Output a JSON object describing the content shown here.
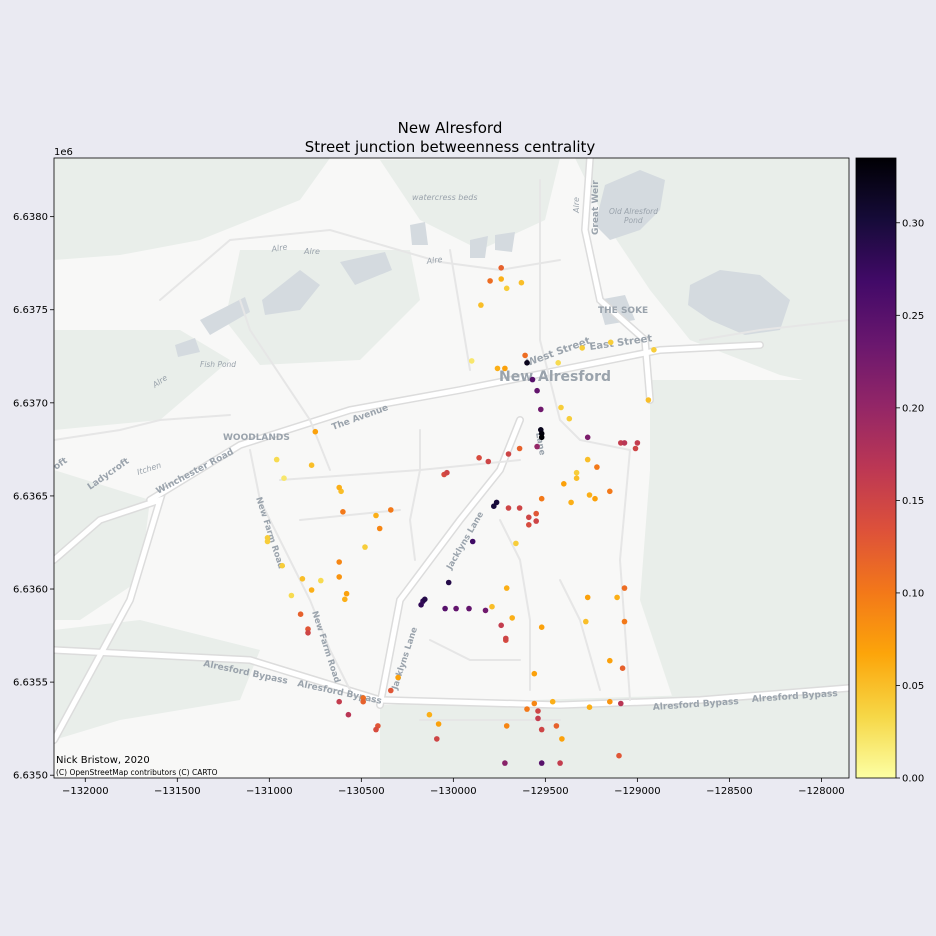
{
  "title_line1": "New Alresford",
  "title_line2": "Street junction betweenness centrality",
  "x_exponent": "1e6",
  "credit_author": "Nick Bristow, 2020",
  "credit_tiles": "(C) OpenStreetMap contributors (C) CARTO",
  "map_labels": {
    "watercress": "watercress beds",
    "great_weir": "Great Weir",
    "old_pond": "Old Alresford",
    "old_pond2": "Pond",
    "alre1": "Alre",
    "alre2": "Alre",
    "alre3": "Alre",
    "alre4": "Alre",
    "alre5": "Alre",
    "the_soke": "THE SOKE",
    "fish_pond": "Fish Pond",
    "west_street": "West Street",
    "east_street": "East Street",
    "new_alresford": "New Alresford",
    "woodlands": "WOODLANDS",
    "the_avenue": "The Avenue",
    "winchester_road": "Winchester Road",
    "itchen": "Itchen",
    "ladycroft": "Ladycroft",
    "croft": "oft",
    "new_farm_road": "New Farm Road",
    "jacklyns_lane": "Jacklyns Lane",
    "jacklyns_lane2": "Jacklyns Lane",
    "jacklyns_lane3": "Jacklyns Lane",
    "bypass1": "Alresford Bypass",
    "bypass2": "Alresford Bypass",
    "bypass3": "Alresford Bypass",
    "bypass4": "Alresford Bypass",
    "lane": "Lane"
  },
  "colors": {
    "background": "#eaeaf2",
    "map_bg": "#f8f8f7",
    "green": "#e9eeea",
    "water": "#d4dadf",
    "road": "#ffffff",
    "road_edge": "#dcdcdc",
    "colormap": [
      "#fcffa4",
      "#f6d746",
      "#fca50a",
      "#f37819",
      "#dd513a",
      "#bc3754",
      "#932667",
      "#6a176e",
      "#420a68",
      "#160b39",
      "#000004"
    ]
  },
  "chart_data": {
    "type": "scatter",
    "title": "New Alresford\nStreet junction betweenness centrality",
    "x_ticks": [
      -132000,
      -131500,
      -131000,
      -130500,
      -130000,
      -129500,
      -129000,
      -128500,
      -128000
    ],
    "x_tick_labels": [
      "−132000",
      "−131500",
      "−131000",
      "−130500",
      "−130000",
      "−129500",
      "−129000",
      "−128500",
      "−128000"
    ],
    "y_ticks": [
      6.635,
      6.6355,
      6.636,
      6.6365,
      6.637,
      6.6375,
      6.638
    ],
    "y_tick_labels": [
      "6.6350",
      "6.6355",
      "6.6360",
      "6.6365",
      "6.6370",
      "6.6375",
      "6.6380"
    ],
    "y_multiplier": "1e6",
    "xlim": [
      -132170,
      -127850
    ],
    "ylim": [
      6.634985,
      6.638315
    ],
    "colorbar": {
      "colormap": "inferno_r",
      "range": [
        0,
        0.335
      ],
      "ticks": [
        0.0,
        0.05,
        0.1,
        0.15,
        0.2,
        0.25,
        0.3
      ],
      "tick_labels": [
        "0.00",
        "0.05",
        "0.10",
        "0.15",
        "0.20",
        "0.25",
        "0.30"
      ]
    },
    "points": [
      [
        -129520,
        6.636815,
        0.335
      ],
      [
        -129520,
        6.636835,
        0.33
      ],
      [
        -129525,
        6.636855,
        0.32
      ],
      [
        -129600,
        6.637215,
        0.32
      ],
      [
        -129570,
        6.637125,
        0.25
      ],
      [
        -129545,
        6.637065,
        0.24
      ],
      [
        -129525,
        6.636965,
        0.23
      ],
      [
        -129545,
        6.636765,
        0.2
      ],
      [
        -129640,
        6.636755,
        0.12
      ],
      [
        -129700,
        6.636725,
        0.15
      ],
      [
        -129860,
        6.636705,
        0.14
      ],
      [
        -129810,
        6.636685,
        0.15
      ],
      [
        -130035,
        6.636625,
        0.15
      ],
      [
        -130050,
        6.636615,
        0.14
      ],
      [
        -129765,
        6.636465,
        0.3
      ],
      [
        -129780,
        6.636445,
        0.3
      ],
      [
        -129895,
        6.636255,
        0.27
      ],
      [
        -130025,
        6.636035,
        0.29
      ],
      [
        -130155,
        6.635945,
        0.29
      ],
      [
        -130165,
        6.635935,
        0.28
      ],
      [
        -130175,
        6.635915,
        0.28
      ],
      [
        -130045,
        6.635895,
        0.25
      ],
      [
        -129985,
        6.635895,
        0.24
      ],
      [
        -129915,
        6.635895,
        0.24
      ],
      [
        -129825,
        6.635885,
        0.23
      ],
      [
        -129740,
        6.635805,
        0.16
      ],
      [
        -129715,
        6.635735,
        0.15
      ],
      [
        -129715,
        6.635725,
        0.14
      ],
      [
        -129640,
        6.636435,
        0.15
      ],
      [
        -129590,
        6.636385,
        0.15
      ],
      [
        -129590,
        6.636345,
        0.14
      ],
      [
        -129270,
        6.636815,
        0.22
      ],
      [
        -129070,
        6.636785,
        0.17
      ],
      [
        -129090,
        6.636785,
        0.16
      ],
      [
        -129000,
        6.636785,
        0.16
      ],
      [
        -129010,
        6.636755,
        0.15
      ],
      [
        -129150,
        6.636525,
        0.1
      ],
      [
        -129220,
        6.636655,
        0.1
      ],
      [
        -129270,
        6.636695,
        0.05
      ],
      [
        -129740,
        6.637725,
        0.12
      ],
      [
        -129800,
        6.637655,
        0.11
      ],
      [
        -129850,
        6.637525,
        0.05
      ],
      [
        -129740,
        6.637665,
        0.06
      ],
      [
        -129710,
        6.637615,
        0.04
      ],
      [
        -129630,
        6.637645,
        0.05
      ],
      [
        -129610,
        6.637255,
        0.11
      ],
      [
        -129720,
        6.637185,
        0.07
      ],
      [
        -129760,
        6.637185,
        0.06
      ],
      [
        -129900,
        6.637225,
        0.02
      ],
      [
        -129430,
        6.637215,
        0.03
      ],
      [
        -129300,
        6.637295,
        0.04
      ],
      [
        -129145,
        6.637325,
        0.04
      ],
      [
        -128910,
        6.637285,
        0.04
      ],
      [
        -128940,
        6.637015,
        0.05
      ],
      [
        -129415,
        6.636975,
        0.04
      ],
      [
        -129370,
        6.636915,
        0.04
      ],
      [
        -129660,
        6.636245,
        0.04
      ],
      [
        -130960,
        6.636695,
        0.03
      ],
      [
        -130920,
        6.636595,
        0.02
      ],
      [
        -130770,
        6.636665,
        0.05
      ],
      [
        -130750,
        6.636845,
        0.07
      ],
      [
        -130620,
        6.636545,
        0.06
      ],
      [
        -130610,
        6.636525,
        0.05
      ],
      [
        -130600,
        6.636415,
        0.1
      ],
      [
        -130480,
        6.636225,
        0.04
      ],
      [
        -130340,
        6.636425,
        0.1
      ],
      [
        -130400,
        6.636325,
        0.09
      ],
      [
        -130420,
        6.636395,
        0.06
      ],
      [
        -130620,
        6.636145,
        0.09
      ],
      [
        -130620,
        6.636065,
        0.08
      ],
      [
        -130580,
        6.635975,
        0.07
      ],
      [
        -130590,
        6.635945,
        0.06
      ],
      [
        -130720,
        6.636045,
        0.03
      ],
      [
        -130770,
        6.635995,
        0.06
      ],
      [
        -130880,
        6.635965,
        0.03
      ],
      [
        -131010,
        6.636275,
        0.04
      ],
      [
        -131010,
        6.636255,
        0.04
      ],
      [
        -130930,
        6.636125,
        0.04
      ],
      [
        -130820,
        6.636055,
        0.05
      ],
      [
        -130830,
        6.635865,
        0.12
      ],
      [
        -130790,
        6.635785,
        0.13
      ],
      [
        -130790,
        6.635765,
        0.15
      ],
      [
        -130620,
        6.635395,
        0.16
      ],
      [
        -130570,
        6.635325,
        0.17
      ],
      [
        -130490,
        6.635395,
        0.12
      ],
      [
        -130490,
        6.635415,
        0.11
      ],
      [
        -130420,
        6.635245,
        0.14
      ],
      [
        -130410,
        6.635265,
        0.13
      ],
      [
        -130340,
        6.635455,
        0.13
      ],
      [
        -130300,
        6.635525,
        0.07
      ],
      [
        -130130,
        6.635325,
        0.06
      ],
      [
        -130090,
        6.635195,
        0.15
      ],
      [
        -130080,
        6.635275,
        0.07
      ],
      [
        -129710,
        6.635265,
        0.09
      ],
      [
        -129600,
        6.635355,
        0.1
      ],
      [
        -129560,
        6.635385,
        0.09
      ],
      [
        -129540,
        6.635345,
        0.15
      ],
      [
        -129520,
        6.635245,
        0.15
      ],
      [
        -129460,
        6.635395,
        0.06
      ],
      [
        -129440,
        6.635265,
        0.12
      ],
      [
        -129410,
        6.635195,
        0.07
      ],
      [
        -129260,
        6.635365,
        0.06
      ],
      [
        -129150,
        6.635395,
        0.08
      ],
      [
        -129090,
        6.635385,
        0.17
      ],
      [
        -129080,
        6.635575,
        0.12
      ],
      [
        -129150,
        6.635615,
        0.07
      ],
      [
        -129070,
        6.635825,
        0.1
      ],
      [
        -129070,
        6.636005,
        0.11
      ],
      [
        -129110,
        6.635955,
        0.06
      ],
      [
        -129270,
        6.635955,
        0.07
      ],
      [
        -129280,
        6.635825,
        0.05
      ],
      [
        -129540,
        6.635305,
        0.16
      ],
      [
        -129520,
        6.635065,
        0.25
      ],
      [
        -129720,
        6.635065,
        0.21
      ],
      [
        -129420,
        6.635065,
        0.16
      ],
      [
        -129100,
        6.635105,
        0.13
      ],
      [
        -129560,
        6.635545,
        0.07
      ],
      [
        -129520,
        6.635795,
        0.07
      ],
      [
        -129710,
        6.636005,
        0.06
      ],
      [
        -129790,
        6.635905,
        0.05
      ],
      [
        -129680,
        6.635845,
        0.06
      ],
      [
        -129520,
        6.636485,
        0.1
      ],
      [
        -129360,
        6.636465,
        0.06
      ],
      [
        -129400,
        6.636565,
        0.07
      ],
      [
        -129330,
        6.636595,
        0.05
      ],
      [
        -129550,
        6.636365,
        0.15
      ],
      [
        -129550,
        6.636405,
        0.13
      ],
      [
        -129700,
        6.636435,
        0.15
      ],
      [
        -129330,
        6.636625,
        0.04
      ],
      [
        -129260,
        6.636505,
        0.06
      ],
      [
        -129230,
        6.636485,
        0.07
      ]
    ]
  }
}
